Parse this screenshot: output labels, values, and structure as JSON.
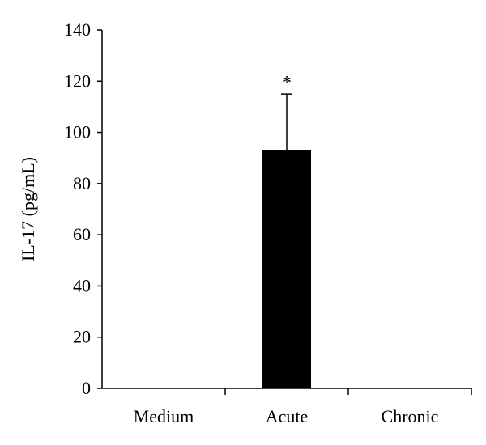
{
  "chart_data": {
    "type": "bar",
    "title": "",
    "xlabel": "",
    "ylabel": "IL-17 (pg/mL)",
    "categories": [
      "Medium",
      "Acute",
      "Chronic"
    ],
    "values": [
      0,
      93,
      0
    ],
    "error_upper": [
      0,
      115,
      0
    ],
    "annotations": [
      "",
      "*",
      ""
    ],
    "ylim": [
      0,
      140
    ],
    "yticks": [
      0,
      20,
      40,
      60,
      80,
      100,
      120,
      140
    ],
    "ytick_labels": [
      "0",
      "20",
      "40",
      "60",
      "80",
      "100",
      "120",
      "140"
    ],
    "grid": false,
    "legend": "none",
    "bar_color": "#000000"
  }
}
